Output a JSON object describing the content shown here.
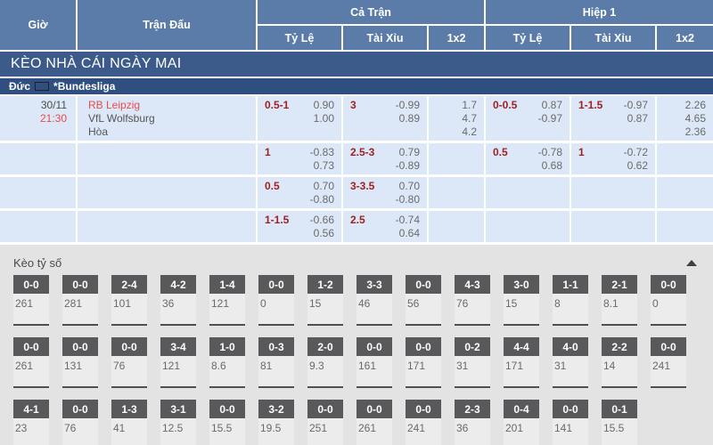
{
  "header": {
    "col_time": "Giờ",
    "col_match": "Trận Đấu",
    "group_full": "Cả Trận",
    "group_half": "Hiệp 1",
    "sub_ratio": "Tỷ Lệ",
    "sub_ou": "Tài Xỉu",
    "sub_1x2": "1x2"
  },
  "banner": {
    "title": "KÈO NHÀ CÁI NGÀY MAI"
  },
  "league": {
    "country": "Đức",
    "flag_icon": "germany-flag",
    "name": "*Bundesliga"
  },
  "colors": {
    "header_bg": "#5b7ca8",
    "banner_bg": "#3c5a8a",
    "league_bg": "#2e4f80",
    "cell_bg": "#dce8f8",
    "handicap_red": "#a02121",
    "accent_red": "#e94b4b",
    "odds_gray": "#6a6a6a",
    "score_box": "#59595b",
    "section_bg": "#e3e3e3"
  },
  "odds_rows": [
    {
      "date": "30/11",
      "time": "21:30",
      "teams": [
        "RB Leipzig",
        "VfL Wolfsburg",
        "Hòa"
      ],
      "ft_hcp": "0.5-1",
      "ft_hcp_odds": [
        "0.90",
        "1.00"
      ],
      "ft_ou": "3",
      "ft_ou_odds": [
        "-0.99",
        "0.89"
      ],
      "ft_1x2": [
        "1.7",
        "4.7",
        "4.2"
      ],
      "h1_hcp": "0-0.5",
      "h1_hcp_odds": [
        "0.87",
        "-0.97"
      ],
      "h1_ou": "1-1.5",
      "h1_ou_odds": [
        "-0.97",
        "0.87"
      ],
      "h1_1x2": [
        "2.26",
        "4.65",
        "2.36"
      ]
    },
    {
      "ft_hcp": "1",
      "ft_hcp_odds": [
        "-0.83",
        "0.73"
      ],
      "ft_ou": "2.5-3",
      "ft_ou_odds": [
        "0.79",
        "-0.89"
      ],
      "ft_1x2": [],
      "h1_hcp": "0.5",
      "h1_hcp_odds": [
        "-0.78",
        "0.68"
      ],
      "h1_ou": "1",
      "h1_ou_odds": [
        "-0.72",
        "0.62"
      ],
      "h1_1x2": []
    },
    {
      "ft_hcp": "0.5",
      "ft_hcp_odds": [
        "0.70",
        "-0.80"
      ],
      "ft_ou": "3-3.5",
      "ft_ou_odds": [
        "0.70",
        "-0.80"
      ],
      "ft_1x2": [],
      "h1_1x2": []
    },
    {
      "ft_hcp": "1-1.5",
      "ft_hcp_odds": [
        "-0.66",
        "0.56"
      ],
      "ft_ou": "2.5",
      "ft_ou_odds": [
        "-0.74",
        "0.64"
      ],
      "ft_1x2": [],
      "h1_1x2": []
    }
  ],
  "score_section": {
    "title": "Kèo tỷ số",
    "collapse_icon": "triangle-up-icon",
    "rows": [
      [
        {
          "score": "0-0",
          "value": "261"
        },
        {
          "score": "0-0",
          "value": "281"
        },
        {
          "score": "2-4",
          "value": "101"
        },
        {
          "score": "4-2",
          "value": "36"
        },
        {
          "score": "1-4",
          "value": "121"
        },
        {
          "score": "0-0",
          "value": "0"
        },
        {
          "score": "1-2",
          "value": "15"
        },
        {
          "score": "3-3",
          "value": "46"
        },
        {
          "score": "0-0",
          "value": "56"
        },
        {
          "score": "4-3",
          "value": "76"
        },
        {
          "score": "3-0",
          "value": "15"
        },
        {
          "score": "1-1",
          "value": "8"
        },
        {
          "score": "2-1",
          "value": "8.1"
        },
        {
          "score": "0-0",
          "value": "0"
        }
      ],
      [
        {
          "score": "0-0",
          "value": "261"
        },
        {
          "score": "0-0",
          "value": "131"
        },
        {
          "score": "0-0",
          "value": "76"
        },
        {
          "score": "3-4",
          "value": "121"
        },
        {
          "score": "1-0",
          "value": "8.6"
        },
        {
          "score": "0-3",
          "value": "81"
        },
        {
          "score": "2-0",
          "value": "9.3"
        },
        {
          "score": "0-0",
          "value": "161"
        },
        {
          "score": "0-0",
          "value": "171"
        },
        {
          "score": "0-2",
          "value": "31"
        },
        {
          "score": "4-4",
          "value": "171"
        },
        {
          "score": "4-0",
          "value": "31"
        },
        {
          "score": "2-2",
          "value": "14"
        },
        {
          "score": "0-0",
          "value": "241"
        }
      ],
      [
        {
          "score": "4-1",
          "value": "23"
        },
        {
          "score": "0-0",
          "value": "76"
        },
        {
          "score": "1-3",
          "value": "41"
        },
        {
          "score": "3-1",
          "value": "12.5"
        },
        {
          "score": "0-0",
          "value": "15.5"
        },
        {
          "score": "3-2",
          "value": "19.5"
        },
        {
          "score": "0-0",
          "value": "251"
        },
        {
          "score": "0-0",
          "value": "261"
        },
        {
          "score": "0-0",
          "value": "241"
        },
        {
          "score": "2-3",
          "value": "36"
        },
        {
          "score": "0-4",
          "value": "201"
        },
        {
          "score": "0-0",
          "value": "141"
        },
        {
          "score": "0-1",
          "value": "15.5"
        }
      ]
    ]
  }
}
